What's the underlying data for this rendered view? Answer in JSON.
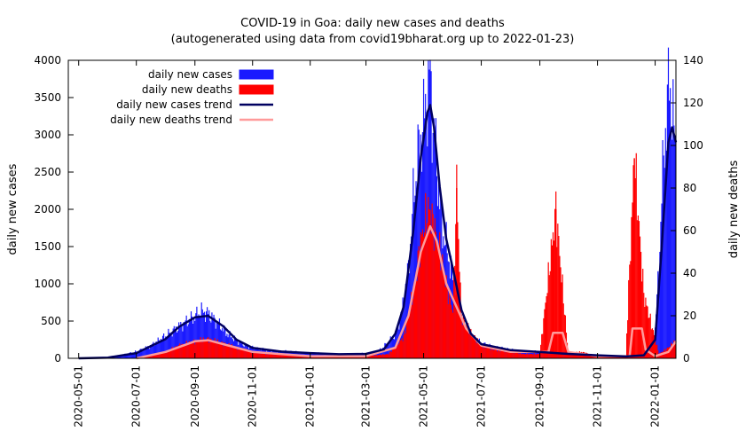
{
  "chart_data": {
    "type": "bar",
    "title": "COVID-19 in Goa: daily new cases and deaths",
    "subtitle": "(autogenerated using data from covid19bharat.org up to 2022-01-23)",
    "ylabel": "daily new cases",
    "y2label": "daily new deaths",
    "ylim": [
      0,
      4000
    ],
    "y2lim": [
      0,
      140
    ],
    "xlim": [
      "2020-04-20",
      "2022-01-23"
    ],
    "x_ticks": [
      "2020-05-01",
      "2020-07-01",
      "2020-09-01",
      "2020-11-01",
      "2021-01-01",
      "2021-03-01",
      "2021-05-01",
      "2021-07-01",
      "2021-09-01",
      "2021-11-01",
      "2022-01-01"
    ],
    "y_ticks": [
      0,
      500,
      1000,
      1500,
      2000,
      2500,
      3000,
      3500,
      4000
    ],
    "y2_ticks": [
      0,
      20,
      40,
      60,
      80,
      100,
      120,
      140
    ],
    "grid": false,
    "legend_position": "top-left",
    "colors": {
      "cases": "#1a1aff",
      "deaths": "#ff0000",
      "cases_trend": "#000060",
      "deaths_trend": "#ff9a9a"
    },
    "legend": [
      {
        "label": "daily new cases",
        "key": "cases"
      },
      {
        "label": "daily new deaths",
        "key": "deaths"
      },
      {
        "label": "daily new cases trend",
        "key": "cases_trend"
      },
      {
        "label": "daily new deaths trend",
        "key": "deaths_trend"
      }
    ],
    "series": [
      {
        "name": "daily new cases",
        "axis": "left",
        "style": "impulse",
        "points": [
          [
            "2020-05-01",
            0
          ],
          [
            "2020-06-01",
            10
          ],
          [
            "2020-06-15",
            40
          ],
          [
            "2020-07-01",
            90
          ],
          [
            "2020-07-15",
            160
          ],
          [
            "2020-08-01",
            300
          ],
          [
            "2020-08-10",
            380
          ],
          [
            "2020-08-20",
            470
          ],
          [
            "2020-09-01",
            560
          ],
          [
            "2020-09-08",
            630
          ],
          [
            "2020-09-15",
            600
          ],
          [
            "2020-09-25",
            480
          ],
          [
            "2020-10-05",
            330
          ],
          [
            "2020-10-20",
            200
          ],
          [
            "2020-11-01",
            140
          ],
          [
            "2020-11-15",
            110
          ],
          [
            "2020-12-01",
            95
          ],
          [
            "2020-12-20",
            80
          ],
          [
            "2021-01-01",
            70
          ],
          [
            "2021-01-20",
            60
          ],
          [
            "2021-02-05",
            55
          ],
          [
            "2021-02-20",
            60
          ],
          [
            "2021-03-05",
            70
          ],
          [
            "2021-03-15",
            100
          ],
          [
            "2021-03-25",
            220
          ],
          [
            "2021-04-01",
            320
          ],
          [
            "2021-04-08",
            620
          ],
          [
            "2021-04-15",
            1200
          ],
          [
            "2021-04-20",
            2100
          ],
          [
            "2021-04-25",
            2700
          ],
          [
            "2021-04-30",
            3100
          ],
          [
            "2021-05-05",
            3500
          ],
          [
            "2021-05-08",
            3800
          ],
          [
            "2021-05-10",
            3300
          ],
          [
            "2021-05-15",
            2600
          ],
          [
            "2021-05-20",
            1800
          ],
          [
            "2021-05-25",
            1500
          ],
          [
            "2021-06-01",
            1100
          ],
          [
            "2021-06-10",
            500
          ],
          [
            "2021-06-20",
            300
          ],
          [
            "2021-07-01",
            200
          ],
          [
            "2021-07-15",
            150
          ],
          [
            "2021-08-01",
            110
          ],
          [
            "2021-08-15",
            90
          ],
          [
            "2021-09-01",
            90
          ],
          [
            "2021-09-15",
            80
          ],
          [
            "2021-10-01",
            70
          ],
          [
            "2021-10-15",
            50
          ],
          [
            "2021-11-01",
            40
          ],
          [
            "2021-11-15",
            30
          ],
          [
            "2021-12-01",
            25
          ],
          [
            "2021-12-15",
            30
          ],
          [
            "2021-12-25",
            60
          ],
          [
            "2022-01-01",
            400
          ],
          [
            "2022-01-05",
            1200
          ],
          [
            "2022-01-08",
            2200
          ],
          [
            "2022-01-12",
            3100
          ],
          [
            "2022-01-16",
            3700
          ],
          [
            "2022-01-19",
            3300
          ],
          [
            "2022-01-22",
            2900
          ]
        ]
      },
      {
        "name": "daily new deaths",
        "axis": "right",
        "style": "impulse",
        "points": [
          [
            "2020-07-01",
            0
          ],
          [
            "2020-07-15",
            1
          ],
          [
            "2020-08-01",
            3
          ],
          [
            "2020-08-15",
            6
          ],
          [
            "2020-09-01",
            8
          ],
          [
            "2020-09-15",
            9
          ],
          [
            "2020-10-01",
            7
          ],
          [
            "2020-10-15",
            5
          ],
          [
            "2020-11-01",
            3
          ],
          [
            "2020-11-15",
            2
          ],
          [
            "2020-12-01",
            2
          ],
          [
            "2021-01-01",
            1
          ],
          [
            "2021-02-01",
            1
          ],
          [
            "2021-03-01",
            1
          ],
          [
            "2021-03-25",
            2
          ],
          [
            "2021-04-10",
            10
          ],
          [
            "2021-04-20",
            30
          ],
          [
            "2021-04-28",
            55
          ],
          [
            "2021-05-03",
            65
          ],
          [
            "2021-05-07",
            70
          ],
          [
            "2021-05-12",
            62
          ],
          [
            "2021-05-18",
            50
          ],
          [
            "2021-05-25",
            35
          ],
          [
            "2021-06-01",
            22
          ],
          [
            "2021-06-05",
            80
          ],
          [
            "2021-06-10",
            20
          ],
          [
            "2021-06-20",
            12
          ],
          [
            "2021-07-01",
            6
          ],
          [
            "2021-07-15",
            4
          ],
          [
            "2021-08-01",
            3
          ],
          [
            "2021-08-15",
            2
          ],
          [
            "2021-09-01",
            2
          ],
          [
            "2021-09-18",
            70
          ],
          [
            "2021-10-01",
            2
          ],
          [
            "2021-10-15",
            3
          ],
          [
            "2021-11-01",
            1
          ],
          [
            "2021-12-01",
            1
          ],
          [
            "2021-12-10",
            94
          ],
          [
            "2021-12-20",
            30
          ],
          [
            "2022-01-05",
            2
          ],
          [
            "2022-01-15",
            5
          ],
          [
            "2022-01-22",
            8
          ]
        ]
      },
      {
        "name": "daily new cases trend",
        "axis": "left",
        "style": "line",
        "points": [
          [
            "2020-05-01",
            0
          ],
          [
            "2020-06-01",
            10
          ],
          [
            "2020-07-01",
            70
          ],
          [
            "2020-08-01",
            260
          ],
          [
            "2020-08-15",
            420
          ],
          [
            "2020-09-01",
            550
          ],
          [
            "2020-09-15",
            570
          ],
          [
            "2020-10-01",
            430
          ],
          [
            "2020-10-15",
            250
          ],
          [
            "2020-11-01",
            140
          ],
          [
            "2020-12-01",
            90
          ],
          [
            "2021-01-01",
            70
          ],
          [
            "2021-02-01",
            55
          ],
          [
            "2021-03-01",
            60
          ],
          [
            "2021-03-20",
            120
          ],
          [
            "2021-04-01",
            330
          ],
          [
            "2021-04-10",
            700
          ],
          [
            "2021-04-20",
            1700
          ],
          [
            "2021-04-28",
            2700
          ],
          [
            "2021-05-05",
            3300
          ],
          [
            "2021-05-08",
            3400
          ],
          [
            "2021-05-12",
            3100
          ],
          [
            "2021-05-18",
            2300
          ],
          [
            "2021-05-25",
            1600
          ],
          [
            "2021-06-01",
            1200
          ],
          [
            "2021-06-10",
            650
          ],
          [
            "2021-06-20",
            330
          ],
          [
            "2021-07-01",
            190
          ],
          [
            "2021-08-01",
            110
          ],
          [
            "2021-09-01",
            85
          ],
          [
            "2021-10-01",
            60
          ],
          [
            "2021-11-01",
            40
          ],
          [
            "2021-12-01",
            25
          ],
          [
            "2021-12-20",
            40
          ],
          [
            "2022-01-01",
            250
          ],
          [
            "2022-01-08",
            1500
          ],
          [
            "2022-01-15",
            2900
          ],
          [
            "2022-01-19",
            3100
          ],
          [
            "2022-01-23",
            2900
          ]
        ]
      },
      {
        "name": "daily new deaths trend",
        "axis": "right",
        "style": "line",
        "points": [
          [
            "2020-07-01",
            0
          ],
          [
            "2020-08-01",
            3
          ],
          [
            "2020-09-01",
            8
          ],
          [
            "2020-09-15",
            8.5
          ],
          [
            "2020-10-15",
            5
          ],
          [
            "2020-11-01",
            3
          ],
          [
            "2020-12-01",
            2
          ],
          [
            "2021-01-01",
            1
          ],
          [
            "2021-03-01",
            1
          ],
          [
            "2021-04-01",
            5
          ],
          [
            "2021-04-15",
            20
          ],
          [
            "2021-04-28",
            50
          ],
          [
            "2021-05-08",
            62
          ],
          [
            "2021-05-15",
            55
          ],
          [
            "2021-05-25",
            35
          ],
          [
            "2021-06-05",
            24
          ],
          [
            "2021-06-15",
            14
          ],
          [
            "2021-07-01",
            6
          ],
          [
            "2021-08-01",
            3
          ],
          [
            "2021-09-10",
            3
          ],
          [
            "2021-09-15",
            12
          ],
          [
            "2021-09-25",
            12
          ],
          [
            "2021-10-01",
            3
          ],
          [
            "2021-11-01",
            1
          ],
          [
            "2021-12-05",
            1
          ],
          [
            "2021-12-08",
            14
          ],
          [
            "2021-12-18",
            14
          ],
          [
            "2021-12-22",
            4
          ],
          [
            "2022-01-01",
            1
          ],
          [
            "2022-01-15",
            3
          ],
          [
            "2022-01-23",
            8
          ]
        ]
      }
    ]
  }
}
